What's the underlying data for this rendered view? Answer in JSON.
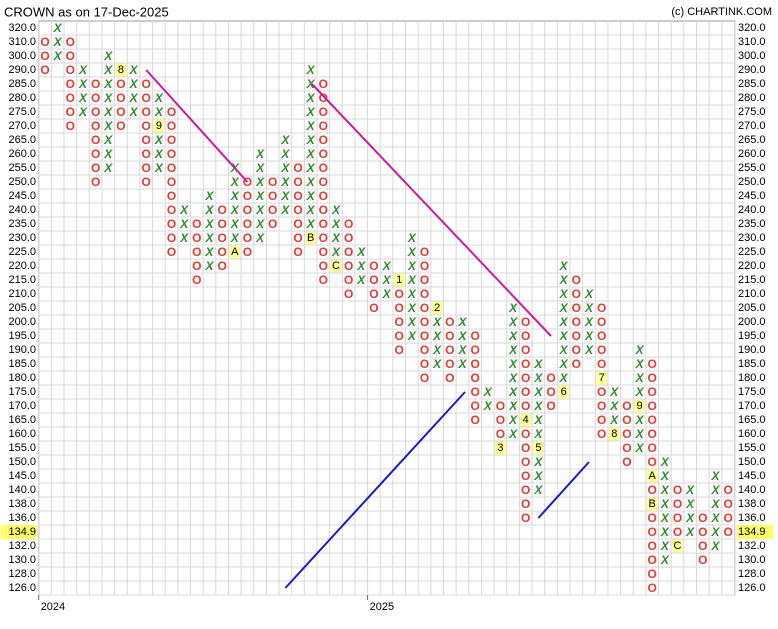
{
  "chart_data": {
    "type": "point-and-figure",
    "title": "CROWN as on 17-Dec-2025",
    "credit": "(c) CHARTINK.COM",
    "x_color": "#2e8b2e",
    "o_color": "#e53935",
    "grid": true,
    "yticks": [
      {
        "value": 320,
        "label": "320.0"
      },
      {
        "value": 310,
        "label": "310.0"
      },
      {
        "value": 300,
        "label": "300.0"
      },
      {
        "value": 290,
        "label": "290.0"
      },
      {
        "value": 285,
        "label": "285.0"
      },
      {
        "value": 280,
        "label": "280.0"
      },
      {
        "value": 275,
        "label": "275.0"
      },
      {
        "value": 270,
        "label": "270.0"
      },
      {
        "value": 265,
        "label": "265.0"
      },
      {
        "value": 260,
        "label": "260.0"
      },
      {
        "value": 255,
        "label": "255.0"
      },
      {
        "value": 250,
        "label": "250.0"
      },
      {
        "value": 245,
        "label": "245.0"
      },
      {
        "value": 240,
        "label": "240.0"
      },
      {
        "value": 235,
        "label": "235.0"
      },
      {
        "value": 230,
        "label": "230.0"
      },
      {
        "value": 225,
        "label": "225.0"
      },
      {
        "value": 220,
        "label": "220.0"
      },
      {
        "value": 215,
        "label": "215.0"
      },
      {
        "value": 210,
        "label": "210.0"
      },
      {
        "value": 205,
        "label": "205.0"
      },
      {
        "value": 200,
        "label": "200.0"
      },
      {
        "value": 195,
        "label": "195.0"
      },
      {
        "value": 190,
        "label": "190.0"
      },
      {
        "value": 185,
        "label": "185.0"
      },
      {
        "value": 180,
        "label": "180.0"
      },
      {
        "value": 175,
        "label": "175.0"
      },
      {
        "value": 170,
        "label": "170.0"
      },
      {
        "value": 165,
        "label": "165.0"
      },
      {
        "value": 160,
        "label": "160.0"
      },
      {
        "value": 155,
        "label": "155.0"
      },
      {
        "value": 150,
        "label": "150.0"
      },
      {
        "value": 145,
        "label": "145.0"
      },
      {
        "value": 140,
        "label": "140.0"
      },
      {
        "value": 138,
        "label": "138.0"
      },
      {
        "value": 136,
        "label": "136.0"
      },
      {
        "value": 134.9,
        "label": "134.9",
        "highlight": true
      },
      {
        "value": 132,
        "label": "132.0"
      },
      {
        "value": 130,
        "label": "130.0"
      },
      {
        "value": 128,
        "label": "128.0"
      },
      {
        "value": 126,
        "label": "126.0"
      }
    ],
    "xticks": [
      {
        "column": 0,
        "label": "2024"
      },
      {
        "column": 26,
        "label": "2025"
      }
    ],
    "columns": [
      {
        "type": "O",
        "top": 310,
        "bottom": 290
      },
      {
        "type": "X",
        "top": 320,
        "bottom": 300
      },
      {
        "type": "O",
        "top": 310,
        "bottom": 270
      },
      {
        "type": "X",
        "top": 290,
        "bottom": 275
      },
      {
        "type": "O",
        "top": 285,
        "bottom": 250
      },
      {
        "type": "X",
        "top": 295,
        "bottom": 255
      },
      {
        "type": "O",
        "top": 290,
        "bottom": 270
      },
      {
        "type": "X",
        "top": 290,
        "bottom": 275
      },
      {
        "type": "O",
        "top": 285,
        "bottom": 250
      },
      {
        "type": "X",
        "top": 280,
        "bottom": 255
      },
      {
        "type": "O",
        "top": 275,
        "bottom": 225
      },
      {
        "type": "X",
        "top": 240,
        "bottom": 230
      },
      {
        "type": "O",
        "top": 235,
        "bottom": 215
      },
      {
        "type": "X",
        "top": 245,
        "bottom": 220
      },
      {
        "type": "O",
        "top": 240,
        "bottom": 220
      },
      {
        "type": "X",
        "top": 255,
        "bottom": 225
      },
      {
        "type": "O",
        "top": 250,
        "bottom": 225
      },
      {
        "type": "X",
        "top": 260,
        "bottom": 230
      },
      {
        "type": "O",
        "top": 250,
        "bottom": 235
      },
      {
        "type": "X",
        "top": 265,
        "bottom": 240
      },
      {
        "type": "O",
        "top": 255,
        "bottom": 225
      },
      {
        "type": "X",
        "top": 290,
        "bottom": 230
      },
      {
        "type": "O",
        "top": 285,
        "bottom": 215
      },
      {
        "type": "X",
        "top": 240,
        "bottom": 220
      },
      {
        "type": "O",
        "top": 235,
        "bottom": 210
      },
      {
        "type": "X",
        "top": 225,
        "bottom": 215
      },
      {
        "type": "O",
        "top": 220,
        "bottom": 205
      },
      {
        "type": "X",
        "top": 220,
        "bottom": 210
      },
      {
        "type": "O",
        "top": 215,
        "bottom": 190
      },
      {
        "type": "X",
        "top": 230,
        "bottom": 195
      },
      {
        "type": "O",
        "top": 225,
        "bottom": 180
      },
      {
        "type": "X",
        "top": 205,
        "bottom": 185
      },
      {
        "type": "O",
        "top": 200,
        "bottom": 180
      },
      {
        "type": "X",
        "top": 200,
        "bottom": 185
      },
      {
        "type": "O",
        "top": 195,
        "bottom": 165
      },
      {
        "type": "X",
        "top": 175,
        "bottom": 170
      },
      {
        "type": "O",
        "top": 170,
        "bottom": 155
      },
      {
        "type": "X",
        "top": 205,
        "bottom": 160
      },
      {
        "type": "O",
        "top": 200,
        "bottom": 136
      },
      {
        "type": "X",
        "top": 185,
        "bottom": 140
      },
      {
        "type": "O",
        "top": 180,
        "bottom": 170
      },
      {
        "type": "X",
        "top": 220,
        "bottom": 175
      },
      {
        "type": "O",
        "top": 215,
        "bottom": 185
      },
      {
        "type": "X",
        "top": 210,
        "bottom": 190
      },
      {
        "type": "O",
        "top": 205,
        "bottom": 160
      },
      {
        "type": "X",
        "top": 175,
        "bottom": 160
      },
      {
        "type": "O",
        "top": 170,
        "bottom": 150
      },
      {
        "type": "X",
        "top": 190,
        "bottom": 155
      },
      {
        "type": "O",
        "top": 185,
        "bottom": 126
      },
      {
        "type": "X",
        "top": 150,
        "bottom": 130
      },
      {
        "type": "O",
        "top": 140,
        "bottom": 132
      },
      {
        "type": "X",
        "top": 140,
        "bottom": 134.9
      },
      {
        "type": "O",
        "top": 136,
        "bottom": 130
      },
      {
        "type": "X",
        "top": 145,
        "bottom": 132
      },
      {
        "type": "O",
        "top": 140,
        "bottom": 134.9
      }
    ],
    "month_markers": [
      {
        "column": 6,
        "price": 290,
        "label": "8"
      },
      {
        "column": 9,
        "price": 270,
        "label": "9"
      },
      {
        "column": 15,
        "price": 225,
        "label": "A"
      },
      {
        "column": 21,
        "price": 230,
        "label": "B"
      },
      {
        "column": 23,
        "price": 220,
        "label": "C"
      },
      {
        "column": 28,
        "price": 215,
        "label": "1"
      },
      {
        "column": 31,
        "price": 205,
        "label": "2"
      },
      {
        "column": 36,
        "price": 155,
        "label": "3"
      },
      {
        "column": 38,
        "price": 165,
        "label": "4"
      },
      {
        "column": 39,
        "price": 155,
        "label": "5"
      },
      {
        "column": 41,
        "price": 175,
        "label": "6"
      },
      {
        "column": 44,
        "price": 180,
        "label": "7"
      },
      {
        "column": 45,
        "price": 160,
        "label": "8"
      },
      {
        "column": 47,
        "price": 170,
        "label": "9"
      },
      {
        "column": 48,
        "price": 145,
        "label": "A"
      },
      {
        "column": 48,
        "price": 138,
        "label": "B"
      },
      {
        "column": 50,
        "price": 132,
        "label": "C"
      }
    ],
    "trendlines": [
      {
        "color": "#cc1a9e",
        "from": [
          8,
          290
        ],
        "to": [
          16,
          250
        ]
      },
      {
        "color": "#cc1a9e",
        "from": [
          21.1,
          285
        ],
        "to": [
          40,
          195
        ]
      },
      {
        "color": "#1a1acc",
        "from": [
          19,
          126
        ],
        "to": [
          33.2,
          175
        ]
      },
      {
        "color": "#1a1acc",
        "from": [
          39,
          136
        ],
        "to": [
          43,
          150
        ]
      }
    ]
  }
}
